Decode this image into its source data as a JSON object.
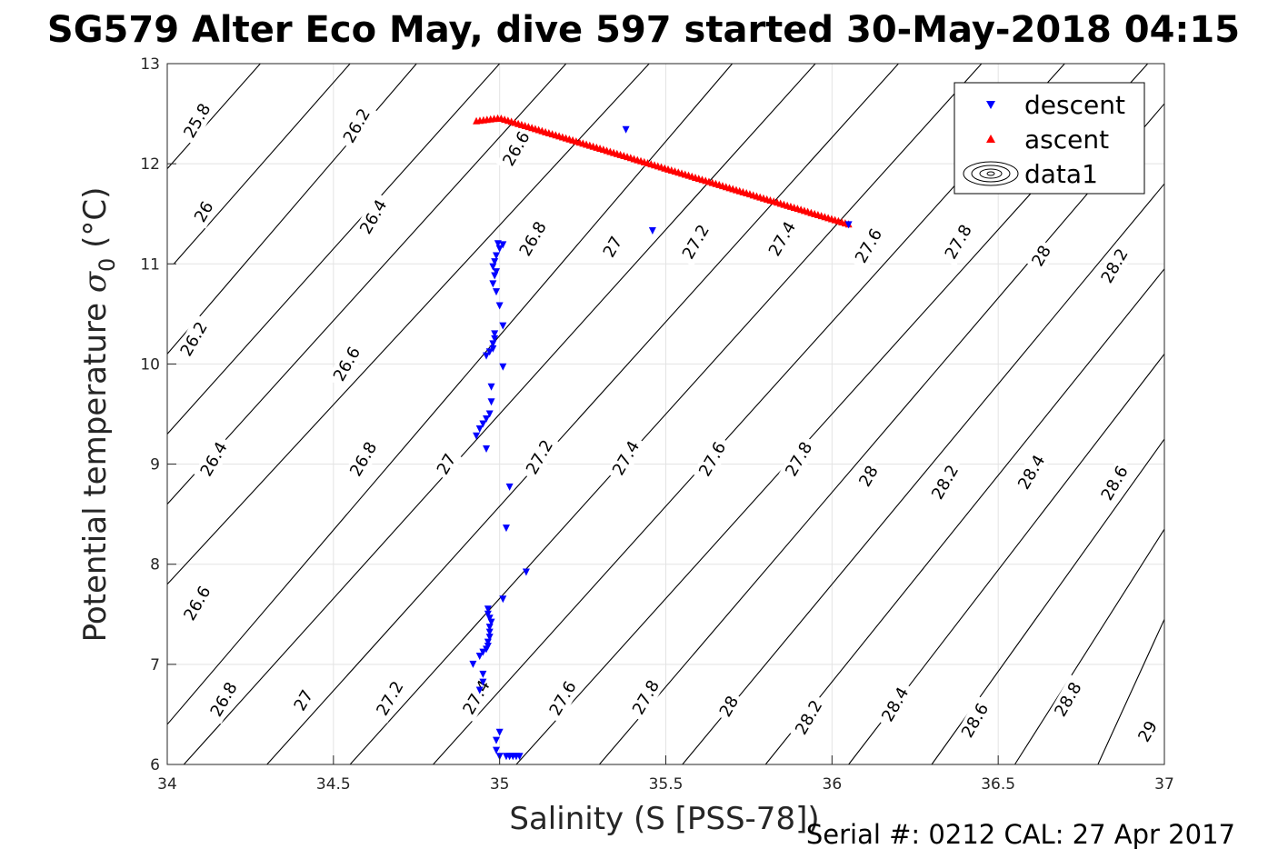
{
  "chart_data": {
    "type": "scatter",
    "title": "SG579 Alter Eco May, dive 597 started 30-May-2018 04:15",
    "xlabel": "Salinity (S [PSS-78])",
    "ylabel_text": "Potential temperature ",
    "ylabel_sigma": "σ",
    "ylabel_sub": "0",
    "ylabel_unit": " (°C)",
    "xlim": [
      34,
      37
    ],
    "ylim": [
      6,
      13
    ],
    "xticks": [
      "34",
      "34.5",
      "35",
      "35.5",
      "36",
      "36.5",
      "37"
    ],
    "yticks": [
      "6",
      "7",
      "8",
      "9",
      "10",
      "11",
      "12",
      "13"
    ],
    "grid": true,
    "legend_position": "top-right",
    "footer": "Serial #: 0212  CAL: 27 Apr 2017",
    "legend": [
      {
        "name": "descent",
        "marker": "triangle-down",
        "color": "#0000ff"
      },
      {
        "name": "ascent",
        "marker": "triangle-up",
        "color": "#ff0000"
      },
      {
        "name": "data1",
        "marker": "contour",
        "color": "#000000"
      }
    ],
    "series": [
      {
        "name": "descent",
        "color": "#0000ff",
        "points": [
          [
            34.92,
            7.0
          ],
          [
            34.94,
            7.08
          ],
          [
            34.95,
            7.12
          ],
          [
            34.96,
            7.15
          ],
          [
            34.965,
            7.18
          ],
          [
            34.965,
            7.22
          ],
          [
            34.97,
            7.27
          ],
          [
            34.97,
            7.32
          ],
          [
            34.97,
            7.37
          ],
          [
            34.975,
            7.42
          ],
          [
            34.97,
            7.46
          ],
          [
            34.965,
            7.5
          ],
          [
            34.965,
            7.55
          ],
          [
            35.01,
            7.65
          ],
          [
            35.08,
            7.92
          ],
          [
            35.02,
            8.36
          ],
          [
            35.03,
            8.77
          ],
          [
            34.96,
            9.15
          ],
          [
            34.93,
            9.28
          ],
          [
            34.94,
            9.35
          ],
          [
            34.95,
            9.4
          ],
          [
            34.96,
            9.45
          ],
          [
            34.97,
            9.5
          ],
          [
            34.975,
            9.62
          ],
          [
            34.975,
            9.77
          ],
          [
            35.01,
            9.97
          ],
          [
            34.96,
            10.08
          ],
          [
            34.97,
            10.12
          ],
          [
            34.98,
            10.15
          ],
          [
            34.98,
            10.2
          ],
          [
            34.985,
            10.25
          ],
          [
            34.985,
            10.3
          ],
          [
            35.01,
            10.38
          ],
          [
            35.0,
            10.58
          ],
          [
            34.99,
            10.72
          ],
          [
            34.98,
            10.8
          ],
          [
            34.985,
            10.88
          ],
          [
            34.99,
            10.92
          ],
          [
            34.98,
            10.97
          ],
          [
            34.985,
            11.02
          ],
          [
            34.99,
            11.08
          ],
          [
            35.0,
            11.15
          ],
          [
            35.01,
            11.19
          ],
          [
            34.995,
            11.2
          ],
          [
            35.46,
            11.33
          ],
          [
            35.38,
            12.34
          ],
          [
            34.94,
            6.74
          ],
          [
            34.95,
            6.82
          ],
          [
            34.95,
            6.9
          ],
          [
            34.99,
            6.14
          ],
          [
            34.99,
            6.24
          ],
          [
            35.0,
            6.32
          ],
          [
            35.0,
            6.08
          ],
          [
            35.02,
            6.08
          ],
          [
            35.03,
            6.08
          ],
          [
            35.04,
            6.08
          ],
          [
            35.05,
            6.08
          ],
          [
            35.06,
            6.08
          ],
          [
            36.05,
            11.39
          ]
        ]
      },
      {
        "name": "ascent",
        "color": "#ff0000",
        "start": [
          34.93,
          12.43
        ],
        "peak": [
          35.0,
          12.46
        ],
        "end": [
          36.05,
          11.4
        ],
        "count": 110
      }
    ],
    "contours": [
      {
        "label": "25.8",
        "label_at": [
          34.09,
          12.43
        ]
      },
      {
        "label": "26.2",
        "label_at": [
          34.57,
          12.38
        ]
      },
      {
        "label": "26.6",
        "label_at": [
          35.05,
          12.15
        ]
      },
      {
        "label": "26",
        "label_at": [
          34.11,
          11.52
        ]
      },
      {
        "label": "26.4",
        "label_at": [
          34.62,
          11.47
        ]
      },
      {
        "label": "26.8",
        "label_at": [
          35.1,
          11.25
        ]
      },
      {
        "label": "27",
        "label_at": [
          35.34,
          11.17
        ]
      },
      {
        "label": "27.2",
        "label_at": [
          35.59,
          11.22
        ]
      },
      {
        "label": "27.4",
        "label_at": [
          35.85,
          11.25
        ]
      },
      {
        "label": "27.6",
        "label_at": [
          36.11,
          11.18
        ]
      },
      {
        "label": "27.8",
        "label_at": [
          36.38,
          11.22
        ]
      },
      {
        "label": "28",
        "label_at": [
          36.63,
          11.08
        ]
      },
      {
        "label": "28.2",
        "label_at": [
          36.85,
          10.98
        ]
      },
      {
        "label": "26.2",
        "label_at": [
          34.08,
          10.25
        ]
      },
      {
        "label": "26.6",
        "label_at": [
          34.54,
          10.0
        ]
      },
      {
        "label": "26.4",
        "label_at": [
          34.14,
          9.05
        ]
      },
      {
        "label": "26.8",
        "label_at": [
          34.59,
          9.05
        ]
      },
      {
        "label": "27",
        "label_at": [
          34.84,
          9.0
        ]
      },
      {
        "label": "27.2",
        "label_at": [
          35.12,
          9.07
        ]
      },
      {
        "label": "27.4",
        "label_at": [
          35.38,
          9.06
        ]
      },
      {
        "label": "27.6",
        "label_at": [
          35.64,
          9.05
        ]
      },
      {
        "label": "27.8",
        "label_at": [
          35.9,
          9.05
        ]
      },
      {
        "label": "28",
        "label_at": [
          36.11,
          8.88
        ]
      },
      {
        "label": "28.2",
        "label_at": [
          36.34,
          8.82
        ]
      },
      {
        "label": "28.4",
        "label_at": [
          36.6,
          8.92
        ]
      },
      {
        "label": "28.6",
        "label_at": [
          36.85,
          8.81
        ]
      },
      {
        "label": "26.6",
        "label_at": [
          34.09,
          7.61
        ]
      },
      {
        "label": "26.8",
        "label_at": [
          34.17,
          6.65
        ]
      },
      {
        "label": "27",
        "label_at": [
          34.41,
          6.64
        ]
      },
      {
        "label": "27.2",
        "label_at": [
          34.67,
          6.66
        ]
      },
      {
        "label": "27.4",
        "label_at": [
          34.93,
          6.67
        ]
      },
      {
        "label": "27.6",
        "label_at": [
          35.19,
          6.66
        ]
      },
      {
        "label": "27.8",
        "label_at": [
          35.44,
          6.67
        ]
      },
      {
        "label": "28",
        "label_at": [
          35.69,
          6.58
        ]
      },
      {
        "label": "28.2",
        "label_at": [
          35.93,
          6.47
        ]
      },
      {
        "label": "28.4",
        "label_at": [
          36.19,
          6.6
        ]
      },
      {
        "label": "28.6",
        "label_at": [
          36.43,
          6.44
        ]
      },
      {
        "label": "28.8",
        "label_at": [
          36.71,
          6.65
        ]
      },
      {
        "label": "29",
        "label_at": [
          36.95,
          6.33
        ]
      }
    ],
    "contour_lines": [
      [
        [
          34.02,
          11.0
        ],
        [
          34.55,
          13.0
        ]
      ],
      [
        [
          34.0,
          11.95
        ],
        [
          34.28,
          13.0
        ]
      ],
      [
        [
          34.0,
          10.1
        ],
        [
          34.75,
          13.0
        ]
      ],
      [
        [
          34.0,
          9.3
        ],
        [
          35.0,
          13.0
        ]
      ],
      [
        [
          34.0,
          8.6
        ],
        [
          35.2,
          13.0
        ]
      ],
      [
        [
          34.0,
          7.8
        ],
        [
          35.45,
          13.0
        ]
      ],
      [
        [
          34.0,
          6.4
        ],
        [
          35.7,
          13.0
        ]
      ],
      [
        [
          34.05,
          6.0
        ],
        [
          35.95,
          13.0
        ]
      ],
      [
        [
          34.3,
          6.0
        ],
        [
          36.2,
          13.0
        ]
      ],
      [
        [
          34.55,
          6.0
        ],
        [
          36.45,
          13.0
        ]
      ],
      [
        [
          34.8,
          6.0
        ],
        [
          36.7,
          13.0
        ]
      ],
      [
        [
          35.05,
          6.0
        ],
        [
          36.95,
          13.0
        ]
      ],
      [
        [
          35.3,
          6.0
        ],
        [
          37.0,
          12.6
        ]
      ],
      [
        [
          35.55,
          6.0
        ],
        [
          37.0,
          11.8
        ]
      ],
      [
        [
          35.8,
          6.0
        ],
        [
          37.0,
          10.95
        ]
      ],
      [
        [
          36.05,
          6.0
        ],
        [
          37.0,
          10.1
        ]
      ],
      [
        [
          36.3,
          6.0
        ],
        [
          37.0,
          9.25
        ]
      ],
      [
        [
          36.55,
          6.0
        ],
        [
          37.0,
          8.35
        ]
      ],
      [
        [
          36.8,
          6.0
        ],
        [
          37.0,
          7.45
        ]
      ]
    ]
  }
}
